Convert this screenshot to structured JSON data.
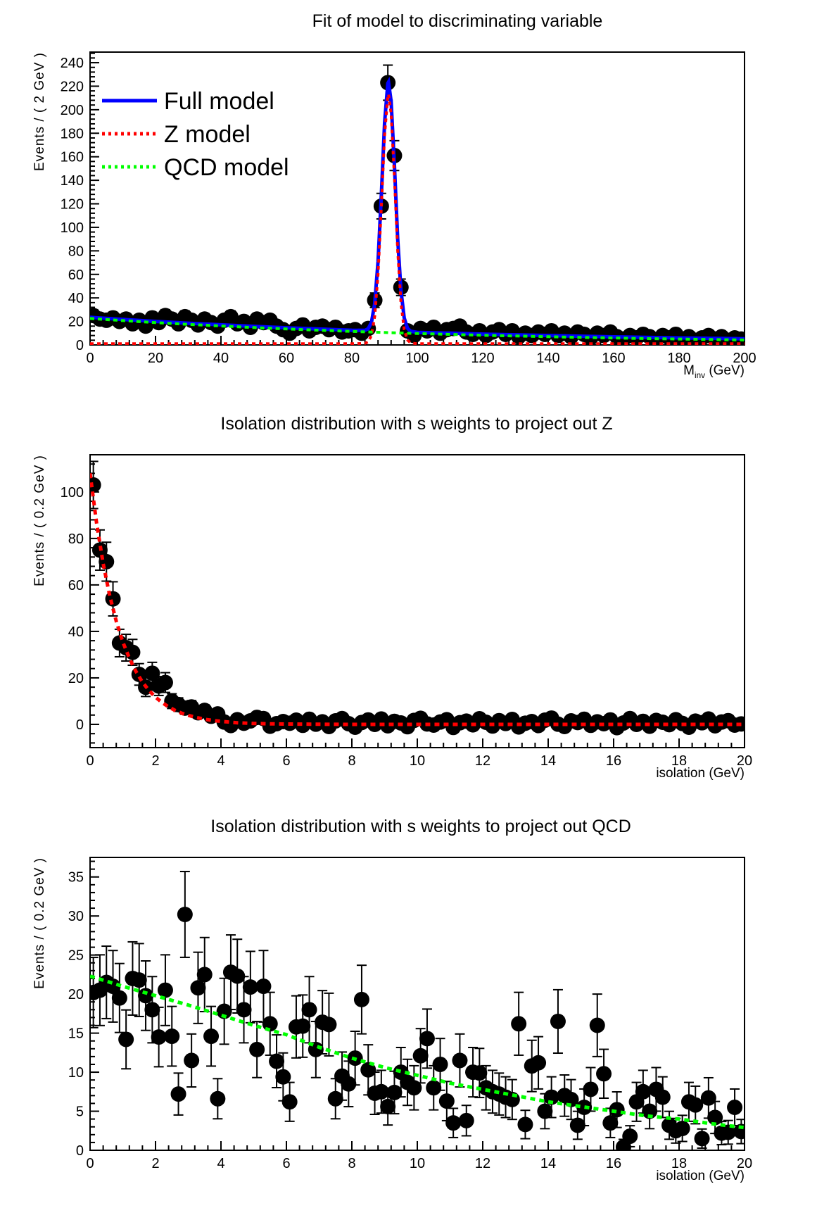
{
  "colors": {
    "full_model": "#0000ff",
    "z_model": "#ff0000",
    "qcd_model": "#00ff00",
    "data_points": "#000000",
    "frame": "#000000",
    "background": "#ffffff"
  },
  "chart_data": [
    {
      "type": "scatter",
      "title": "Fit of model to discriminating variable",
      "ylabel": "Events / ( 2 GeV )",
      "xlabel": {
        "base": "M",
        "sub": "inv",
        "rest": " (GeV)"
      },
      "xlim": [
        0,
        200
      ],
      "ylim": [
        0,
        249
      ],
      "xticks": {
        "major": 20,
        "minor": 4
      },
      "yticks": {
        "major": 20,
        "minor": 4
      },
      "grid": false,
      "legend_position": "top-left-inside",
      "legend": [
        {
          "label": "Full model",
          "color": "#0000ff",
          "dash": null
        },
        {
          "label": "Z model",
          "color": "#ff0000",
          "dash": "4 5"
        },
        {
          "label": "QCD model",
          "color": "#00ff00",
          "dash": "4 5"
        }
      ],
      "points": {
        "x_start": 1,
        "x_step": 2,
        "yerr_rule": "sqrt",
        "err_floor": 1,
        "y": [
          25,
          22,
          21,
          23,
          20,
          22,
          18,
          21,
          16,
          23,
          19,
          25,
          22,
          18,
          24,
          21,
          17,
          22,
          19,
          16,
          21,
          24,
          18,
          20,
          15,
          22,
          19,
          21,
          16,
          13,
          10,
          14,
          17,
          12,
          15,
          16,
          13,
          15,
          11,
          12,
          13,
          10,
          14,
          38,
          118,
          223,
          161,
          49,
          12,
          8,
          14,
          12,
          15,
          10,
          13,
          14,
          16,
          11,
          9,
          12,
          8,
          11,
          13,
          9,
          12,
          7,
          10,
          8,
          11,
          9,
          12,
          8,
          10,
          7,
          11,
          9,
          6,
          10,
          8,
          11,
          7,
          5,
          8,
          6,
          9,
          7,
          4,
          8,
          6,
          9,
          5,
          7,
          4,
          6,
          8,
          5,
          7,
          4,
          6,
          5
        ]
      },
      "curves": [
        {
          "name": "Full model",
          "color": "#0000ff",
          "width": 5,
          "dash": null,
          "x": [
            0,
            10,
            20,
            30,
            40,
            50,
            60,
            70,
            80,
            84,
            85,
            86,
            87,
            88,
            89,
            90,
            91,
            91.2,
            92,
            93,
            94,
            95,
            96,
            97,
            98,
            100,
            110,
            120,
            130,
            140,
            150,
            160,
            170,
            180,
            190,
            200
          ],
          "y": [
            23.5,
            21.7,
            20.0,
            18.5,
            17.1,
            15.8,
            14.6,
            13.5,
            12.5,
            12.4,
            13.8,
            19.2,
            35.3,
            70.7,
            127.5,
            188.7,
            222.4,
            223.5,
            207.1,
            152.7,
            90.7,
            46.0,
            23.0,
            14.2,
            11.6,
            10.7,
            10.0,
            9.2,
            8.6,
            8.0,
            7.4,
            6.9,
            6.4,
            6.0,
            5.6,
            5.2
          ]
        },
        {
          "name": "Z model",
          "color": "#ff0000",
          "width": 4,
          "dash": "5 5",
          "x": [
            0,
            20,
            40,
            60,
            80,
            84,
            85,
            86,
            87,
            88,
            89,
            90,
            91,
            91.2,
            92,
            93,
            94,
            95,
            96,
            97,
            98,
            100,
            120,
            140,
            160,
            180,
            200
          ],
          "y": [
            1,
            1,
            1,
            1,
            1,
            1.3,
            2.7,
            8.2,
            24.4,
            59.9,
            116.8,
            178.1,
            211.9,
            213,
            196.7,
            142.4,
            80.5,
            35.8,
            12.9,
            4.2,
            1.7,
            1,
            1,
            1,
            1,
            1,
            1
          ]
        },
        {
          "name": "QCD model",
          "color": "#00ff00",
          "width": 4,
          "dash": "6 5",
          "x": [
            0,
            10,
            20,
            30,
            40,
            50,
            60,
            70,
            80,
            90,
            100,
            110,
            120,
            130,
            140,
            150,
            160,
            170,
            180,
            190,
            200
          ],
          "y": [
            22.5,
            20.7,
            19.0,
            17.5,
            16.1,
            14.8,
            13.6,
            12.5,
            11.5,
            10.6,
            9.7,
            9.0,
            8.2,
            7.6,
            7.0,
            6.4,
            5.9,
            5.4,
            5.0,
            4.6,
            4.2
          ]
        }
      ]
    },
    {
      "type": "scatter",
      "title": "Isolation distribution with s weights to project out Z",
      "ylabel": "Events / ( 0.2 GeV )",
      "xlabel": {
        "text": "isolation (GeV)"
      },
      "xlim": [
        0,
        20
      ],
      "ylim": [
        -10,
        116
      ],
      "xticks": {
        "major": 2,
        "minor": 0.4
      },
      "yticks": {
        "major": 20,
        "minor": 4
      },
      "grid": false,
      "legend": null,
      "points": {
        "x_start": 0.1,
        "x_step": 0.2,
        "yerr_rule": "sqrt",
        "err_floor": 4,
        "y": [
          103,
          75,
          70,
          54,
          35,
          33,
          31,
          21.5,
          16,
          22,
          16.5,
          18,
          10,
          8.5,
          7,
          7.5,
          5,
          6,
          3.5,
          4.5,
          1,
          -0.5,
          2,
          0.5,
          1.5,
          3,
          2.5,
          -0.8,
          0.3,
          1.2,
          0.5,
          1.8,
          -0.4,
          2.2,
          0.1,
          1.1,
          -0.9,
          1.5,
          2.5,
          0.3,
          -1.2,
          0.8,
          1.9,
          0,
          2.3,
          -0.6,
          1.3,
          0.6,
          -1,
          1.7,
          2.6,
          0.2,
          -0.3,
          1,
          2,
          -1.3,
          0.7,
          1.4,
          -0.2,
          2.4,
          0.9,
          -0.7,
          1.6,
          0.4,
          2.1,
          -1.1,
          0.5,
          1.2,
          -0.5,
          1.8,
          2.7,
          0.1,
          -0.9,
          1.5,
          0.8,
          2.2,
          -0.4,
          1.1,
          0.3,
          1.9,
          -1.4,
          0.6,
          2.5,
          0,
          1.3,
          -0.8,
          1.7,
          0.9,
          -0.1,
          2,
          0.4,
          -1.2,
          1.4,
          0.7,
          2.3,
          -0.6,
          1,
          1.6,
          -0.3,
          0.2
        ]
      },
      "curves": [
        {
          "name": "Z model",
          "color": "#ff0000",
          "width": 5,
          "dash": "7 6",
          "x": [
            0,
            0.2,
            0.4,
            0.6,
            0.8,
            1,
            1.2,
            1.4,
            1.6,
            1.8,
            2,
            2.2,
            2.4,
            2.6,
            2.8,
            3,
            3.2,
            3.4,
            3.6,
            3.8,
            4,
            4.5,
            5,
            5.5,
            6,
            7,
            8,
            10,
            12,
            14,
            16,
            18,
            20
          ],
          "y": [
            108,
            86.5,
            69.2,
            55.4,
            44.4,
            35.5,
            28.5,
            22.8,
            18.2,
            14.6,
            11.7,
            9.4,
            7.5,
            6,
            4.8,
            3.9,
            3.1,
            2.5,
            2,
            1.6,
            1.3,
            0.7,
            0.4,
            0.25,
            0.15,
            0.05,
            0,
            0,
            0,
            0,
            0,
            0,
            0
          ]
        }
      ]
    },
    {
      "type": "scatter",
      "title": "Isolation distribution with s weights to project out QCD",
      "ylabel": "Events / ( 0.2 GeV )",
      "xlabel": {
        "text": "isolation (GeV)"
      },
      "xlim": [
        0,
        20
      ],
      "ylim": [
        0,
        37.5
      ],
      "xticks": {
        "major": 2,
        "minor": 0.4
      },
      "yticks": {
        "major": 5,
        "minor": 1
      },
      "grid": false,
      "legend": null,
      "points": {
        "x_start": 0.1,
        "x_step": 0.2,
        "yerr_rule": "sqrt",
        "err_floor": 1,
        "y": [
          20.2,
          20.5,
          21.5,
          21,
          19.5,
          14.2,
          22,
          21.8,
          19.8,
          18,
          14.5,
          20.5,
          14.6,
          7.2,
          30.2,
          11.5,
          20.8,
          22.5,
          14.6,
          6.6,
          17.8,
          22.8,
          22.3,
          18,
          20.9,
          12.9,
          21,
          16.2,
          11.4,
          9.4,
          6.2,
          15.8,
          15.9,
          18,
          12.9,
          16.4,
          16.1,
          6.6,
          9.5,
          8.5,
          11.8,
          19.3,
          10.3,
          7.3,
          7.5,
          5.6,
          7.4,
          10,
          8.7,
          8,
          12.1,
          14.3,
          8,
          11,
          6.3,
          3.5,
          11.5,
          3.8,
          10,
          9.9,
          8,
          7.5,
          7.2,
          6.8,
          6.5,
          16.2,
          3.3,
          10.8,
          11.2,
          5,
          6.8,
          16.5,
          7,
          6.5,
          3.2,
          5.5,
          7.8,
          16,
          9.8,
          3.5,
          5.2,
          0.4,
          1.8,
          6.2,
          7.5,
          5,
          7.8,
          6.8,
          3.2,
          2.5,
          2.8,
          6.2,
          5.8,
          1.5,
          6.7,
          4.2,
          2.2,
          2.3,
          5.5,
          2.4
        ]
      },
      "curves": [
        {
          "name": "QCD model",
          "color": "#00ff00",
          "width": 5,
          "dash": "7 6",
          "x": [
            0,
            1,
            2,
            3,
            4,
            5,
            6,
            7,
            8,
            9,
            10,
            11,
            12,
            13,
            14,
            15,
            16,
            17,
            18,
            19,
            20
          ],
          "y": [
            22.3,
            21,
            19.8,
            18.6,
            17.3,
            16,
            14.8,
            13.2,
            11.8,
            10.6,
            9.6,
            8.6,
            7.8,
            7,
            6.2,
            5.6,
            5,
            4.4,
            4,
            3.4,
            2.9
          ]
        }
      ]
    }
  ]
}
